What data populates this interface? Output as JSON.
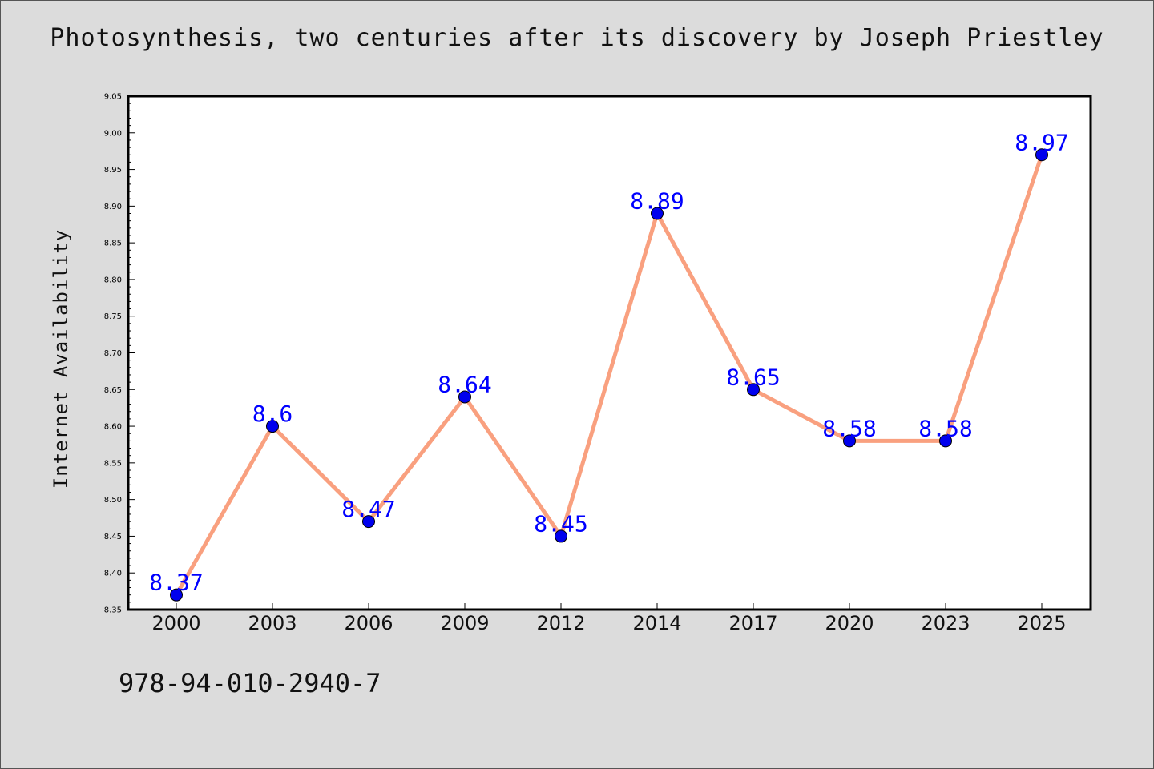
{
  "chart_data": {
    "type": "line",
    "title": "Photosynthesis, two centuries after its discovery by Joseph Priestley",
    "xlabel": "",
    "ylabel": "Internet Availability",
    "categories": [
      "2000",
      "2003",
      "2006",
      "2009",
      "2012",
      "2014",
      "2017",
      "2020",
      "2023",
      "2025"
    ],
    "series": [
      {
        "values": [
          8.37,
          8.6,
          8.47,
          8.64,
          8.45,
          8.89,
          8.65,
          8.58,
          8.58,
          8.97
        ],
        "data_labels": [
          "8.37",
          "8.6",
          "8.47",
          "8.64",
          "8.45",
          "8.89",
          "8.65",
          "8.58",
          "8.58",
          "8.97"
        ],
        "line_color": "#f9a07f",
        "marker_color": "#0000ee"
      }
    ],
    "ylim": [
      8.35,
      9.05
    ],
    "yticks": [
      "8.35",
      "8.40",
      "8.45",
      "8.50",
      "8.55",
      "8.60",
      "8.65",
      "8.70",
      "8.75",
      "8.80",
      "8.85",
      "8.90",
      "8.95",
      "9.00",
      "9.05"
    ],
    "grid": false,
    "legend": "none",
    "label_color": "#0000ff"
  },
  "footer_text": "978-94-010-2940-7"
}
